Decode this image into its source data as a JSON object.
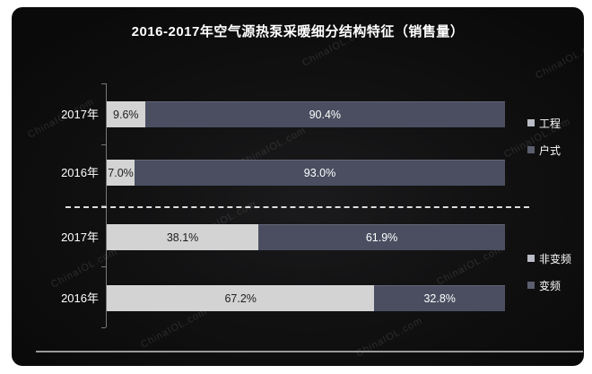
{
  "title": "2016-2017年空气源热泵采暖细分结构特征（销售量）",
  "watermark_text": "ChinaIOL.com",
  "colors": {
    "canvas_bg": "#ffffff",
    "card_bg": "#111112",
    "light_segment": "#d3d3d3",
    "dark_segment": "#4a4e60",
    "axis": "#787878",
    "dashed_separator": "#dddddd",
    "bottom_rule": "#9a9a9a",
    "text": "#ffffff"
  },
  "chart_data": {
    "type": "bar",
    "orientation": "horizontal-stacked",
    "title": "2016-2017年空气源热泵采暖细分结构特征（销售量）",
    "xlim": [
      0,
      100
    ],
    "unit": "%",
    "grid": false,
    "legend_position": "right",
    "groups": [
      {
        "legend": [
          {
            "label": "工程",
            "swatch": "light"
          },
          {
            "label": "户式",
            "swatch": "dark"
          }
        ],
        "rows": [
          {
            "category": "2017年",
            "segments": [
              {
                "series": "工程",
                "value": 9.6,
                "label": "9.6%",
                "swatch": "light"
              },
              {
                "series": "户式",
                "value": 90.4,
                "label": "90.4%",
                "swatch": "dark"
              }
            ]
          },
          {
            "category": "2016年",
            "segments": [
              {
                "series": "工程",
                "value": 7.0,
                "label": "7.0%",
                "swatch": "light"
              },
              {
                "series": "户式",
                "value": 93.0,
                "label": "93.0%",
                "swatch": "dark"
              }
            ]
          }
        ]
      },
      {
        "legend": [
          {
            "label": "非变频",
            "swatch": "light"
          },
          {
            "label": "变频",
            "swatch": "dark"
          }
        ],
        "rows": [
          {
            "category": "2017年",
            "segments": [
              {
                "series": "非变频",
                "value": 38.1,
                "label": "38.1%",
                "swatch": "light"
              },
              {
                "series": "变频",
                "value": 61.9,
                "label": "61.9%",
                "swatch": "dark"
              }
            ]
          },
          {
            "category": "2016年",
            "segments": [
              {
                "series": "非变频",
                "value": 67.2,
                "label": "67.2%",
                "swatch": "light"
              },
              {
                "series": "变频",
                "value": 32.8,
                "label": "32.8%",
                "swatch": "dark"
              }
            ]
          }
        ]
      }
    ]
  }
}
